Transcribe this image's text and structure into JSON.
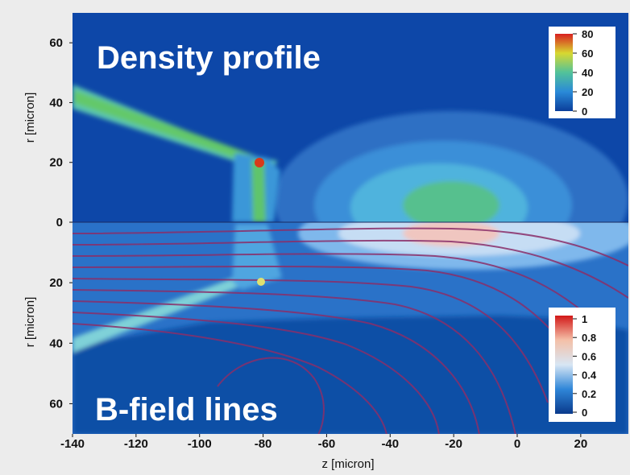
{
  "chart_data": [
    {
      "type": "heatmap",
      "title": "Density profile",
      "xlabel": "z [micron]",
      "ylabel": "r [micron]",
      "xlim": [
        -140,
        35
      ],
      "ylim": [
        0,
        70
      ],
      "x_ticks": [
        "-140",
        "-120",
        "-100",
        "-80",
        "-60",
        "-40",
        "-20",
        "0",
        "20"
      ],
      "y_ticks": [
        "0",
        "20",
        "40",
        "60"
      ],
      "colorbar": {
        "ticks": [
          "80",
          "60",
          "40",
          "20",
          "0"
        ],
        "range": [
          0,
          80
        ],
        "placement": "top-right"
      },
      "colors": {
        "low": "#0b3e9a",
        "mid": "#52c29a",
        "high": "#d82020"
      }
    },
    {
      "type": "heatmap",
      "title": "B-field lines",
      "xlabel": "z [micron]",
      "ylabel": "r [micron]",
      "xlim": [
        -140,
        35
      ],
      "ylim": [
        0,
        70
      ],
      "y_inverted": true,
      "x_ticks": [
        "-140",
        "-120",
        "-100",
        "-80",
        "-60",
        "-40",
        "-20",
        "0",
        "20"
      ],
      "y_ticks": [
        "0",
        "20",
        "40",
        "60"
      ],
      "colorbar": {
        "ticks": [
          "1",
          "0.8",
          "0.6",
          "0.4",
          "0.2",
          "0"
        ],
        "range": [
          0,
          1
        ],
        "placement": "bottom-right"
      },
      "colors": {
        "low": "#0a3a8c",
        "mid": "#d8e6f4",
        "high": "#d21818",
        "field_lines": "#8a2f6a"
      }
    }
  ]
}
